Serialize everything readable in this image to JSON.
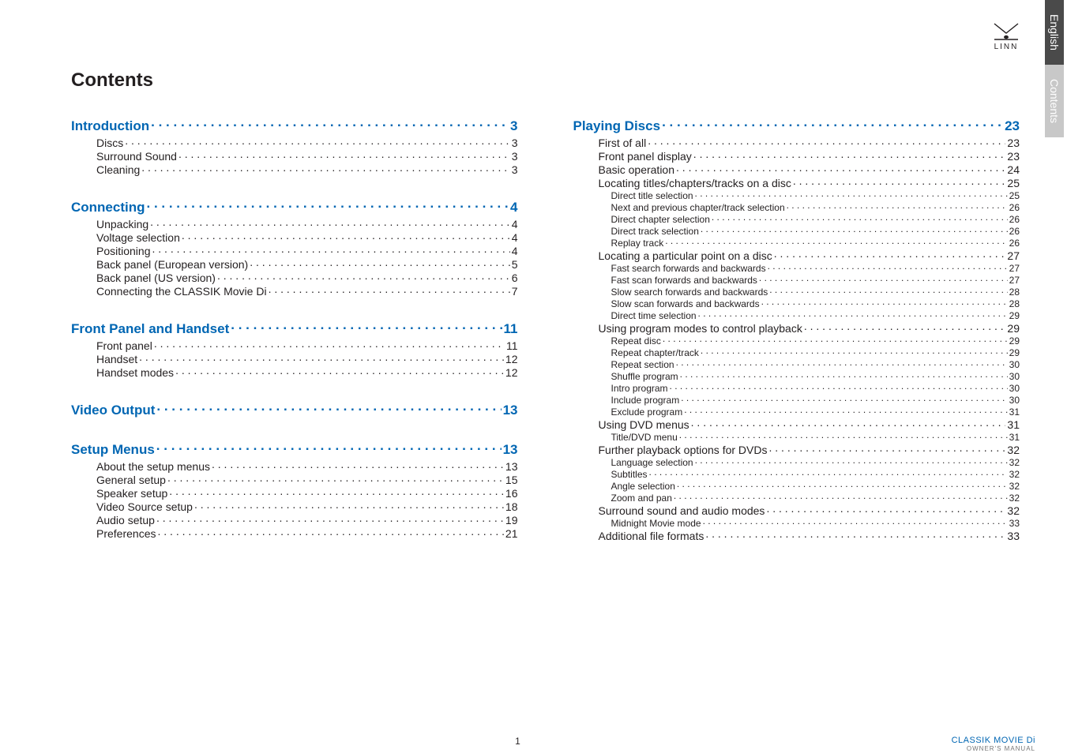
{
  "tabs": {
    "lang": "English",
    "section": "Contents"
  },
  "logo_text": "LINN",
  "title": "Contents",
  "page_number": "1",
  "footer": {
    "brand": "CLASSIK MOVIE Di",
    "sub": "OWNER'S MANUAL"
  },
  "colors": {
    "link": "#0066b3",
    "text": "#231f20",
    "tab_dark": "#4a4a4a",
    "tab_light": "#c8c8c8"
  },
  "left": [
    {
      "h": "Introduction",
      "p": "3",
      "items": [
        {
          "t": "Discs",
          "p": "3"
        },
        {
          "t": "Surround Sound",
          "p": "3"
        },
        {
          "t": "Cleaning",
          "p": "3"
        }
      ]
    },
    {
      "h": "Connecting",
      "p": "4",
      "items": [
        {
          "t": "Unpacking",
          "p": "4"
        },
        {
          "t": "Voltage selection",
          "p": "4"
        },
        {
          "t": "Positioning",
          "p": "4"
        },
        {
          "t": "Back panel (European version)",
          "p": "5"
        },
        {
          "t": "Back panel (US version)",
          "p": "6"
        },
        {
          "t": "Connecting the CLASSIK Movie Di",
          "p": "7"
        }
      ]
    },
    {
      "h": "Front Panel and Handset",
      "p": "11",
      "items": [
        {
          "t": "Front panel",
          "p": "11"
        },
        {
          "t": "Handset",
          "p": "12"
        },
        {
          "t": "Handset modes",
          "p": "12"
        }
      ]
    },
    {
      "h": "Video Output",
      "p": "13",
      "items": []
    },
    {
      "h": "Setup Menus",
      "p": "13",
      "items": [
        {
          "t": "About the setup menus",
          "p": "13"
        },
        {
          "t": "General setup",
          "p": "15"
        },
        {
          "t": "Speaker setup",
          "p": "16"
        },
        {
          "t": "Video Source setup",
          "p": "18"
        },
        {
          "t": "Audio setup",
          "p": "19"
        },
        {
          "t": "Preferences",
          "p": "21"
        }
      ]
    }
  ],
  "right": [
    {
      "h": "Playing Discs",
      "p": "23",
      "items": [
        {
          "t": "First of all",
          "p": "23"
        },
        {
          "t": "Front panel display",
          "p": "23"
        },
        {
          "t": "Basic operation",
          "p": "24"
        },
        {
          "t": "Locating titles/chapters/tracks on a disc",
          "p": "25",
          "sub": [
            {
              "t": "Direct title selection",
              "p": "25"
            },
            {
              "t": "Next and previous chapter/track selection",
              "p": "26"
            },
            {
              "t": "Direct chapter selection",
              "p": "26"
            },
            {
              "t": "Direct track selection",
              "p": "26"
            },
            {
              "t": "Replay track",
              "p": "26"
            }
          ]
        },
        {
          "t": "Locating a particular point on a disc",
          "p": "27",
          "sub": [
            {
              "t": "Fast search forwards and backwards",
              "p": "27"
            },
            {
              "t": "Fast scan forwards and backwards",
              "p": "27"
            },
            {
              "t": "Slow search forwards and backwards",
              "p": "28"
            },
            {
              "t": "Slow scan forwards and backwards",
              "p": "28"
            },
            {
              "t": "Direct time selection",
              "p": "29"
            }
          ]
        },
        {
          "t": "Using program modes to control playback",
          "p": "29",
          "sub": [
            {
              "t": "Repeat disc",
              "p": "29"
            },
            {
              "t": "Repeat chapter/track",
              "p": "29"
            },
            {
              "t": "Repeat section",
              "p": "30"
            },
            {
              "t": "Shuffle program",
              "p": "30"
            },
            {
              "t": "Intro program",
              "p": "30"
            },
            {
              "t": "Include program",
              "p": "30"
            },
            {
              "t": "Exclude program",
              "p": "31"
            }
          ]
        },
        {
          "t": "Using DVD menus",
          "p": "31",
          "sub": [
            {
              "t": "Title/DVD menu",
              "p": "31"
            }
          ]
        },
        {
          "t": "Further playback options for DVDs",
          "p": "32",
          "sub": [
            {
              "t": "Language selection",
              "p": "32"
            },
            {
              "t": "Subtitles",
              "p": "32"
            },
            {
              "t": "Angle selection",
              "p": "32"
            },
            {
              "t": "Zoom and pan",
              "p": "32"
            }
          ]
        },
        {
          "t": "Surround sound and audio modes",
          "p": "32",
          "sub": [
            {
              "t": "Midnight Movie mode",
              "p": "33"
            }
          ]
        },
        {
          "t": "Additional file formats",
          "p": "33"
        }
      ]
    }
  ]
}
